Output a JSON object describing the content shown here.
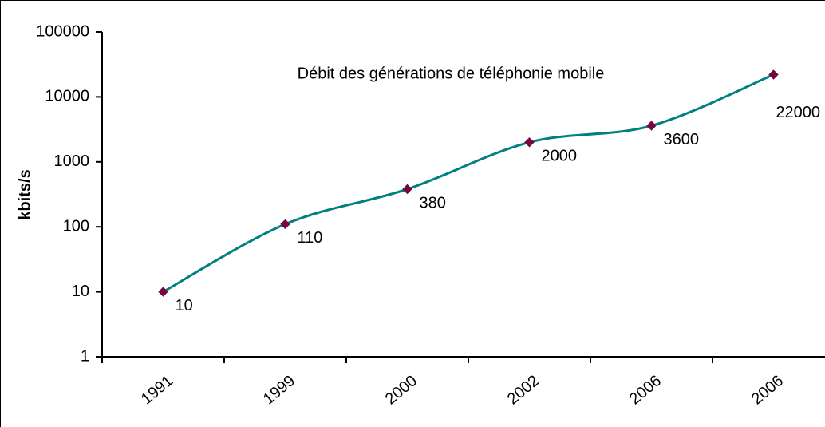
{
  "chart_data": {
    "type": "line",
    "title": "Débit des générations de téléphonie mobile",
    "y_label": "kbits/s",
    "categories": [
      "1991",
      "1999",
      "2000",
      "2002",
      "2006",
      "2006"
    ],
    "series": [
      {
        "color": "#008080",
        "marker_color": "#800040",
        "values": [
          10,
          110,
          380,
          2000,
          3600,
          22000
        ]
      }
    ],
    "log_scale": true,
    "ylim": [
      1,
      100000
    ],
    "yticks": [
      1,
      10,
      100,
      1000,
      10000,
      100000
    ],
    "data_labels": true
  }
}
